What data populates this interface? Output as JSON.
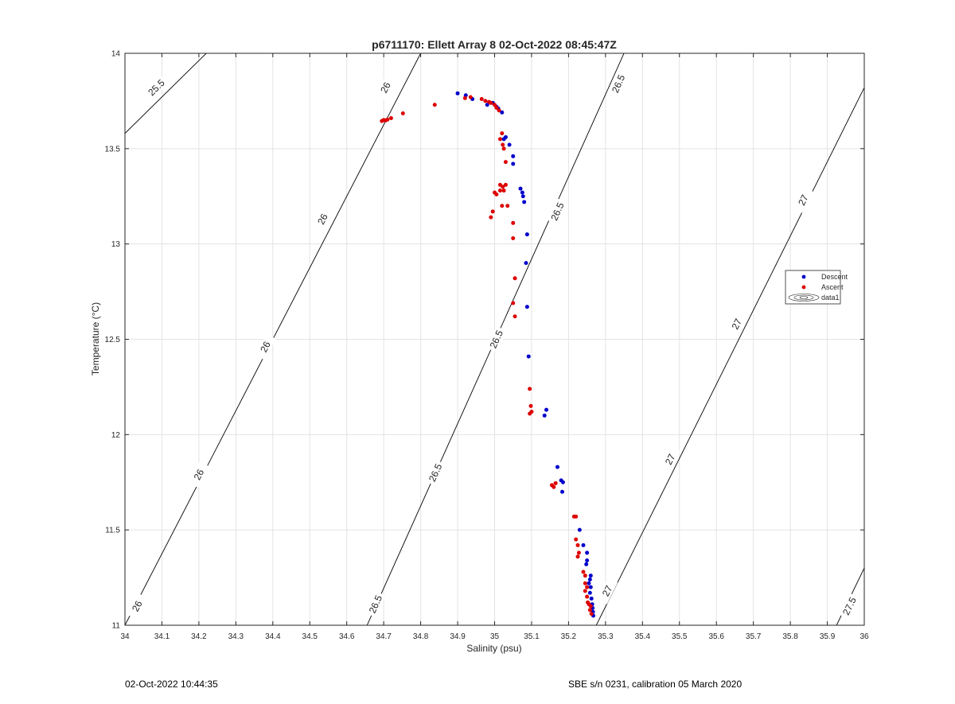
{
  "chart_data": {
    "type": "scatter",
    "title": "p6711170: Ellett Array 8 02-Oct-2022 08:45:47Z",
    "xlabel": "Salinity (psu)",
    "ylabel": "Temperature (°C)",
    "xlim": [
      34,
      36
    ],
    "ylim": [
      11,
      14
    ],
    "x_ticks": [
      "34",
      "34.1",
      "34.2",
      "34.3",
      "34.4",
      "34.5",
      "34.6",
      "34.7",
      "34.8",
      "34.9",
      "35",
      "35.1",
      "35.2",
      "35.3",
      "35.4",
      "35.5",
      "35.6",
      "35.7",
      "35.8",
      "35.9",
      "36"
    ],
    "y_ticks": [
      "11",
      "11.5",
      "12",
      "12.5",
      "13",
      "13.5",
      "14"
    ],
    "grid": true,
    "legend": {
      "placement": "right",
      "entries": [
        "Descent",
        "Ascent",
        "data1"
      ]
    },
    "colors": {
      "descent": "#0000cc",
      "ascent": "#dd0000",
      "contour": "#000000",
      "grid": "#e3e3e3"
    },
    "series": [
      {
        "name": "Descent",
        "points": [
          [
            34.9,
            13.79
          ],
          [
            34.922,
            13.78
          ],
          [
            34.94,
            13.76
          ],
          [
            34.98,
            13.73
          ],
          [
            34.995,
            13.74
          ],
          [
            35.005,
            13.72
          ],
          [
            35.01,
            13.71
          ],
          [
            35.02,
            13.69
          ],
          [
            35.025,
            13.55
          ],
          [
            35.03,
            13.56
          ],
          [
            35.04,
            13.52
          ],
          [
            35.05,
            13.46
          ],
          [
            35.05,
            13.42
          ],
          [
            35.07,
            13.29
          ],
          [
            35.075,
            13.27
          ],
          [
            35.077,
            13.25
          ],
          [
            35.08,
            13.22
          ],
          [
            35.088,
            13.05
          ],
          [
            35.085,
            12.9
          ],
          [
            35.088,
            12.67
          ],
          [
            35.092,
            12.41
          ],
          [
            35.135,
            12.1
          ],
          [
            35.14,
            12.13
          ],
          [
            35.17,
            11.83
          ],
          [
            35.18,
            11.76
          ],
          [
            35.185,
            11.75
          ],
          [
            35.183,
            11.7
          ],
          [
            35.23,
            11.5
          ],
          [
            35.24,
            11.42
          ],
          [
            35.25,
            11.38
          ],
          [
            35.25,
            11.34
          ],
          [
            35.248,
            11.32
          ],
          [
            35.26,
            11.26
          ],
          [
            35.258,
            11.24
          ],
          [
            35.255,
            11.22
          ],
          [
            35.26,
            11.2
          ],
          [
            35.258,
            11.17
          ],
          [
            35.262,
            11.14
          ],
          [
            35.264,
            11.11
          ],
          [
            35.265,
            11.09
          ],
          [
            35.266,
            11.07
          ],
          [
            35.267,
            11.05
          ]
        ]
      },
      {
        "name": "Ascent",
        "points": [
          [
            34.695,
            13.645
          ],
          [
            34.7,
            13.65
          ],
          [
            34.705,
            13.648
          ],
          [
            34.71,
            13.652
          ],
          [
            34.72,
            13.66
          ],
          [
            34.752,
            13.685
          ],
          [
            34.838,
            13.73
          ],
          [
            34.92,
            13.765
          ],
          [
            34.935,
            13.77
          ],
          [
            34.965,
            13.76
          ],
          [
            34.975,
            13.75
          ],
          [
            34.985,
            13.745
          ],
          [
            34.99,
            13.74
          ],
          [
            35.0,
            13.73
          ],
          [
            35.005,
            13.715
          ],
          [
            35.012,
            13.7
          ],
          [
            35.015,
            13.55
          ],
          [
            35.02,
            13.58
          ],
          [
            35.022,
            13.52
          ],
          [
            35.025,
            13.5
          ],
          [
            35.03,
            13.43
          ],
          [
            35.015,
            13.31
          ],
          [
            35.022,
            13.3
          ],
          [
            35.03,
            13.31
          ],
          [
            35.0,
            13.27
          ],
          [
            35.005,
            13.26
          ],
          [
            35.015,
            13.28
          ],
          [
            35.025,
            13.28
          ],
          [
            35.02,
            13.2
          ],
          [
            35.035,
            13.2
          ],
          [
            34.995,
            13.17
          ],
          [
            34.99,
            13.14
          ],
          [
            35.05,
            13.11
          ],
          [
            35.05,
            13.03
          ],
          [
            35.055,
            12.82
          ],
          [
            35.05,
            12.69
          ],
          [
            35.055,
            12.62
          ],
          [
            35.095,
            12.24
          ],
          [
            35.098,
            12.15
          ],
          [
            35.095,
            12.11
          ],
          [
            35.1,
            12.12
          ],
          [
            35.155,
            11.735
          ],
          [
            35.16,
            11.725
          ],
          [
            35.165,
            11.745
          ],
          [
            35.215,
            11.57
          ],
          [
            35.22,
            11.57
          ],
          [
            35.22,
            11.45
          ],
          [
            35.225,
            11.42
          ],
          [
            35.228,
            11.38
          ],
          [
            35.225,
            11.36
          ],
          [
            35.24,
            11.28
          ],
          [
            35.245,
            11.26
          ],
          [
            35.245,
            11.22
          ],
          [
            35.25,
            11.2
          ],
          [
            35.245,
            11.18
          ],
          [
            35.25,
            11.15
          ],
          [
            35.252,
            11.12
          ],
          [
            35.255,
            11.11
          ],
          [
            35.26,
            11.1
          ],
          [
            35.258,
            11.08
          ],
          [
            35.262,
            11.06
          ]
        ]
      }
    ],
    "isopycnals": [
      {
        "sigma": 25.5,
        "points": [
          [
            34.0,
            13.58
          ],
          [
            34.22,
            14.0
          ]
        ],
        "labels": [
          {
            "text": "25.5",
            "x": 34.085,
            "y": 13.82
          }
        ]
      },
      {
        "sigma": 26,
        "points": [
          [
            34.0,
            11.0
          ],
          [
            34.8,
            14.0
          ]
        ],
        "labels": [
          {
            "text": "26",
            "x": 34.033,
            "y": 11.1
          },
          {
            "text": "26",
            "x": 34.2,
            "y": 11.79
          },
          {
            "text": "26",
            "x": 34.38,
            "y": 12.46
          },
          {
            "text": "26",
            "x": 34.535,
            "y": 13.13
          },
          {
            "text": "26",
            "x": 34.705,
            "y": 13.82
          }
        ]
      },
      {
        "sigma": 26.5,
        "points": [
          [
            34.655,
            11.0
          ],
          [
            35.35,
            14.0
          ]
        ],
        "labels": [
          {
            "text": "26.5",
            "x": 34.678,
            "y": 11.11
          },
          {
            "text": "26.5",
            "x": 34.84,
            "y": 11.8
          },
          {
            "text": "26.5",
            "x": 35.005,
            "y": 12.5
          },
          {
            "text": "26.5",
            "x": 35.17,
            "y": 13.17
          },
          {
            "text": "26.5",
            "x": 35.335,
            "y": 13.84
          }
        ]
      },
      {
        "sigma": 27,
        "points": [
          [
            35.275,
            11.0
          ],
          [
            36.0,
            13.82
          ]
        ],
        "labels": [
          {
            "text": "27",
            "x": 35.305,
            "y": 11.18
          },
          {
            "text": "27",
            "x": 35.475,
            "y": 11.87
          },
          {
            "text": "27",
            "x": 35.655,
            "y": 12.58
          },
          {
            "text": "27",
            "x": 35.835,
            "y": 13.23
          }
        ]
      },
      {
        "sigma": 27.5,
        "points": [
          [
            35.925,
            11.0
          ],
          [
            36.0,
            11.3
          ]
        ],
        "labels": [
          {
            "text": "27.5",
            "x": 35.96,
            "y": 11.1
          }
        ]
      }
    ]
  },
  "footer": {
    "timestamp": "02-Oct-2022 10:44:35",
    "calibration": "SBE s/n 0231, calibration 05 March 2020"
  }
}
